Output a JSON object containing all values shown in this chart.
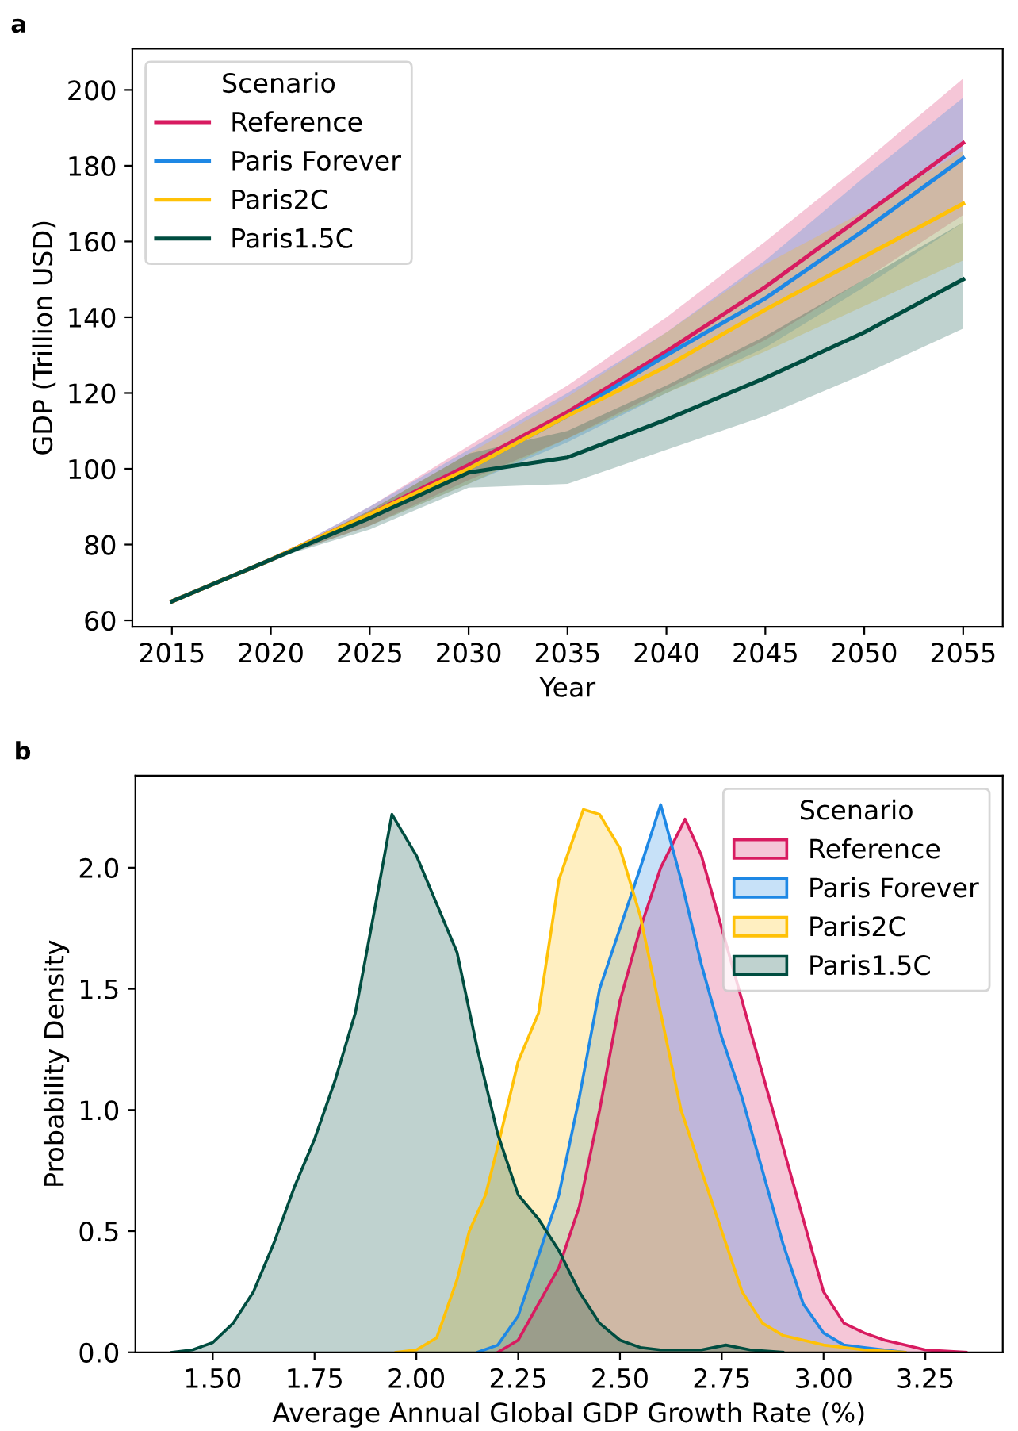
{
  "chart_data": [
    {
      "type": "line",
      "title": "a",
      "xlabel": "Year",
      "ylabel": "GDP (Trillion USD)",
      "legend_title": "Scenario",
      "legend": "top left",
      "grid": false,
      "marker": "none",
      "line_style": "solid",
      "x": [
        2015,
        2020,
        2025,
        2030,
        2035,
        2040,
        2045,
        2050,
        2055
      ],
      "xlim": [
        2013,
        2057
      ],
      "ylim": [
        58.3,
        210.9
      ],
      "xticks": [
        2015,
        2020,
        2025,
        2030,
        2035,
        2040,
        2045,
        2050,
        2055
      ],
      "yticks": [
        60,
        80,
        100,
        120,
        140,
        160,
        180,
        200
      ],
      "series": [
        {
          "name": "Reference",
          "color": "#d81b60",
          "values": [
            65,
            76,
            88,
            101,
            115,
            131,
            148,
            167,
            186
          ],
          "lower": [
            65,
            76,
            85,
            97,
            108,
            121,
            134,
            150,
            167
          ],
          "upper": [
            65,
            76,
            90,
            106,
            122,
            140,
            160,
            181,
            203
          ]
        },
        {
          "name": "Paris Forever",
          "color": "#1e88e5",
          "values": [
            null,
            null,
            null,
            100,
            114,
            130,
            145,
            163,
            182
          ],
          "lower": [
            65,
            76,
            85,
            96,
            107,
            120,
            132,
            148,
            165
          ],
          "upper": [
            65,
            76,
            90,
            105,
            120,
            136,
            155,
            177,
            198
          ]
        },
        {
          "name": "Paris2C",
          "color": "#ffc107",
          "values": [
            65,
            76,
            88,
            100,
            114,
            127,
            142,
            156,
            170
          ],
          "lower": [
            65,
            76,
            85,
            96,
            108,
            120,
            131,
            143,
            155
          ],
          "upper": [
            65,
            76,
            89,
            104,
            119,
            136,
            154,
            168,
            184
          ]
        },
        {
          "name": "Paris1.5C",
          "color": "#004d40",
          "values": [
            65,
            76,
            87,
            99,
            103,
            113,
            124,
            136,
            150
          ],
          "lower": [
            65,
            76,
            84,
            95,
            96,
            105,
            114,
            125,
            137
          ],
          "upper": [
            65,
            76,
            89,
            104,
            110,
            122,
            135,
            150,
            165
          ]
        }
      ]
    },
    {
      "type": "area",
      "title": "b",
      "xlabel": "Average Annual Global GDP Growth Rate (%)",
      "ylabel": "Probability Density",
      "legend_title": "Scenario",
      "legend": "top right",
      "grid": false,
      "xlim": [
        1.31,
        3.44
      ],
      "ylim": [
        0,
        2.38
      ],
      "xticks": [
        {
          "value": 1.5,
          "label": "1.50"
        },
        {
          "value": 1.75,
          "label": "1.75"
        },
        {
          "value": 2.0,
          "label": "2.00"
        },
        {
          "value": 2.25,
          "label": "2.25"
        },
        {
          "value": 2.5,
          "label": "2.50"
        },
        {
          "value": 2.75,
          "label": "2.75"
        },
        {
          "value": 3.0,
          "label": "3.00"
        },
        {
          "value": 3.25,
          "label": "3.25"
        }
      ],
      "yticks": [
        {
          "value": 0,
          "label": "0.0"
        },
        {
          "value": 0.5,
          "label": "0.5"
        },
        {
          "value": 1,
          "label": "1.0"
        },
        {
          "value": 1.5,
          "label": "1.5"
        },
        {
          "value": 2,
          "label": "2.0"
        }
      ],
      "series": [
        {
          "name": "Reference",
          "color": "#d81b60",
          "x": [
            2.2,
            2.25,
            2.3,
            2.35,
            2.4,
            2.45,
            2.5,
            2.55,
            2.6,
            2.66,
            2.7,
            2.75,
            2.8,
            2.85,
            2.9,
            2.95,
            3.0,
            3.05,
            3.1,
            3.15,
            3.2,
            3.25,
            3.35
          ],
          "values": [
            0,
            0.05,
            0.2,
            0.35,
            0.6,
            1.0,
            1.45,
            1.75,
            2.0,
            2.2,
            2.05,
            1.75,
            1.45,
            1.15,
            0.85,
            0.55,
            0.25,
            0.12,
            0.08,
            0.05,
            0.03,
            0.01,
            0
          ]
        },
        {
          "name": "Paris Forever",
          "color": "#1e88e5",
          "x": [
            2.15,
            2.2,
            2.25,
            2.3,
            2.35,
            2.4,
            2.45,
            2.5,
            2.55,
            2.6,
            2.65,
            2.7,
            2.75,
            2.8,
            2.85,
            2.9,
            2.95,
            3.0,
            3.05,
            3.1,
            3.2
          ],
          "values": [
            0,
            0.03,
            0.15,
            0.4,
            0.65,
            1.05,
            1.5,
            1.75,
            2.0,
            2.26,
            1.95,
            1.6,
            1.3,
            1.05,
            0.75,
            0.45,
            0.2,
            0.08,
            0.03,
            0.02,
            0
          ]
        },
        {
          "name": "Paris2C",
          "color": "#ffc107",
          "x": [
            1.95,
            2.0,
            2.05,
            2.1,
            2.13,
            2.17,
            2.2,
            2.25,
            2.3,
            2.35,
            2.41,
            2.45,
            2.5,
            2.55,
            2.6,
            2.65,
            2.7,
            2.75,
            2.8,
            2.85,
            2.9,
            2.95,
            3.0,
            3.1,
            3.2
          ],
          "values": [
            0,
            0.01,
            0.06,
            0.3,
            0.5,
            0.65,
            0.85,
            1.2,
            1.4,
            1.95,
            2.24,
            2.22,
            2.08,
            1.8,
            1.4,
            1.0,
            0.75,
            0.5,
            0.25,
            0.12,
            0.07,
            0.05,
            0.03,
            0.01,
            0
          ]
        },
        {
          "name": "Paris1.5C",
          "color": "#004d40",
          "x": [
            1.4,
            1.45,
            1.5,
            1.55,
            1.6,
            1.65,
            1.7,
            1.75,
            1.8,
            1.85,
            1.9,
            1.94,
            2.0,
            2.05,
            2.1,
            2.15,
            2.2,
            2.25,
            2.3,
            2.35,
            2.4,
            2.45,
            2.5,
            2.55,
            2.6,
            2.7,
            2.76,
            2.82,
            2.9
          ],
          "values": [
            0,
            0.01,
            0.04,
            0.12,
            0.25,
            0.45,
            0.68,
            0.88,
            1.12,
            1.4,
            1.85,
            2.22,
            2.05,
            1.85,
            1.65,
            1.25,
            0.9,
            0.65,
            0.55,
            0.42,
            0.25,
            0.12,
            0.05,
            0.02,
            0.01,
            0.01,
            0.03,
            0.01,
            0
          ]
        }
      ]
    }
  ]
}
